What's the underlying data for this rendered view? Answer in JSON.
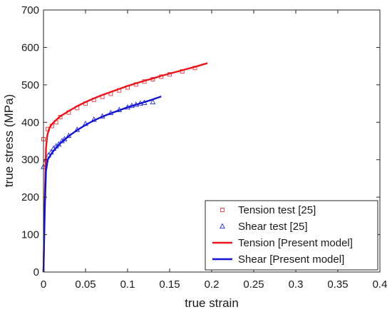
{
  "chart_data": {
    "type": "line",
    "xlabel": "true strain",
    "ylabel": "true stress (MPa)",
    "xlim": [
      0,
      0.4
    ],
    "ylim": [
      0,
      700
    ],
    "x_ticks": [
      "0",
      "0.05",
      "0.1",
      "0.15",
      "0.2",
      "0.25",
      "0.3",
      "0.35",
      "0.4"
    ],
    "y_ticks": [
      "0",
      "100",
      "200",
      "300",
      "400",
      "500",
      "600",
      "700"
    ],
    "grid": false,
    "legend_position": "bottom-right",
    "series": [
      {
        "name": "Tension test [25]",
        "kind": "markers",
        "marker": "square",
        "color": "#e8484f",
        "points": [
          [
            0,
            355
          ],
          [
            0.005,
            382
          ],
          [
            0.01,
            390
          ],
          [
            0.015,
            400
          ],
          [
            0.02,
            414
          ],
          [
            0.03,
            426
          ],
          [
            0.04,
            438
          ],
          [
            0.05,
            450
          ],
          [
            0.06,
            460
          ],
          [
            0.07,
            468
          ],
          [
            0.08,
            476
          ],
          [
            0.09,
            485
          ],
          [
            0.1,
            493
          ],
          [
            0.11,
            501
          ],
          [
            0.12,
            509
          ],
          [
            0.13,
            515
          ],
          [
            0.14,
            522
          ],
          [
            0.15,
            528
          ],
          [
            0.165,
            536
          ],
          [
            0.18,
            545
          ]
        ]
      },
      {
        "name": "Shear test [25]",
        "kind": "markers",
        "marker": "triangle",
        "color": "#3b3fd6",
        "points": [
          [
            0,
            281
          ],
          [
            0.003,
            300
          ],
          [
            0.006,
            312
          ],
          [
            0.009,
            320
          ],
          [
            0.012,
            330
          ],
          [
            0.015,
            336
          ],
          [
            0.018,
            341
          ],
          [
            0.022,
            350
          ],
          [
            0.025,
            355
          ],
          [
            0.03,
            364
          ],
          [
            0.04,
            380
          ],
          [
            0.05,
            396
          ],
          [
            0.06,
            407
          ],
          [
            0.07,
            416
          ],
          [
            0.08,
            425
          ],
          [
            0.09,
            433
          ],
          [
            0.1,
            440
          ],
          [
            0.105,
            444
          ],
          [
            0.11,
            447
          ],
          [
            0.115,
            450
          ],
          [
            0.12,
            452
          ],
          [
            0.13,
            454
          ]
        ]
      },
      {
        "name": "Tension [Present model]",
        "kind": "line",
        "color": "#e8161c",
        "points": [
          [
            0,
            0
          ],
          [
            0.0016,
            200
          ],
          [
            0.003,
            330
          ],
          [
            0.0045,
            365
          ],
          [
            0.007,
            385
          ],
          [
            0.01,
            395
          ],
          [
            0.015,
            406
          ],
          [
            0.02,
            416
          ],
          [
            0.03,
            430
          ],
          [
            0.04,
            443
          ],
          [
            0.05,
            454
          ],
          [
            0.06,
            464
          ],
          [
            0.07,
            473
          ],
          [
            0.08,
            481
          ],
          [
            0.09,
            489
          ],
          [
            0.1,
            497
          ],
          [
            0.11,
            504
          ],
          [
            0.12,
            511
          ],
          [
            0.13,
            517
          ],
          [
            0.14,
            524
          ],
          [
            0.15,
            530
          ],
          [
            0.16,
            536
          ],
          [
            0.17,
            542
          ],
          [
            0.18,
            548
          ],
          [
            0.195,
            558
          ]
        ]
      },
      {
        "name": "Shear [Present model]",
        "kind": "line",
        "color": "#1414d2",
        "points": [
          [
            0,
            0
          ],
          [
            0.0016,
            170
          ],
          [
            0.003,
            270
          ],
          [
            0.005,
            300
          ],
          [
            0.01,
            318
          ],
          [
            0.015,
            332
          ],
          [
            0.02,
            344
          ],
          [
            0.03,
            363
          ],
          [
            0.04,
            379
          ],
          [
            0.05,
            393
          ],
          [
            0.06,
            405
          ],
          [
            0.07,
            415
          ],
          [
            0.08,
            424
          ],
          [
            0.09,
            432
          ],
          [
            0.1,
            440
          ],
          [
            0.11,
            447
          ],
          [
            0.12,
            454
          ],
          [
            0.13,
            461
          ],
          [
            0.14,
            469
          ]
        ]
      }
    ]
  }
}
